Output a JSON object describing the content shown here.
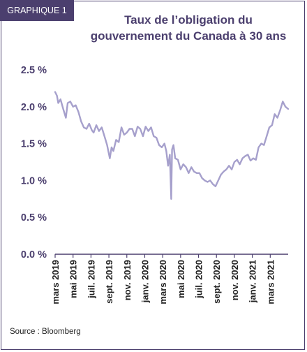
{
  "badge": "GRAPHIQUE 1",
  "title_line1": "Taux de l’obligation du",
  "title_line2": "gouvernement du Canada à 30 ans",
  "source": "Source : Bloomberg",
  "chart_data": {
    "type": "line",
    "title": "Taux de l’obligation du gouvernement du Canada à 30 ans",
    "ylim": [
      0,
      2.5
    ],
    "yticks": [
      "0.0 %",
      "0.5 %",
      "1.0 %",
      "1.5 %",
      "2.0 %",
      "2.5 %"
    ],
    "ytick_values": [
      0,
      0.5,
      1.0,
      1.5,
      2.0,
      2.5
    ],
    "xticks": [
      "mars 2019",
      "mai 2019",
      "juil. 2019",
      "sept. 2019",
      "nov. 2019",
      "janv. 2020",
      "mars 2020",
      "mai 2020",
      "juil. 2020",
      "sept. 2020",
      "nov. 2020",
      "janv. 2021",
      "mars 2021"
    ],
    "xlim": [
      0,
      26
    ],
    "grid": false,
    "line_color": "#a6a0cc",
    "series": [
      {
        "x": [
          0,
          0.2,
          0.35,
          0.6,
          0.9,
          1.2,
          1.4,
          1.7,
          2.0,
          2.3,
          2.6,
          2.9,
          3.2,
          3.5,
          3.8,
          4.1,
          4.3,
          4.6,
          4.9,
          5.2,
          5.5,
          5.8,
          6.1,
          6.3,
          6.5,
          6.8,
          7.1,
          7.4,
          7.7,
          8.0,
          8.3,
          8.6,
          8.9,
          9.2,
          9.5,
          9.8,
          10.1,
          10.4,
          10.7,
          11.0,
          11.3,
          11.6,
          11.9,
          12.2,
          12.4,
          12.6,
          12.8,
          12.95,
          13.05,
          13.2,
          13.4,
          13.7,
          14.0,
          14.3,
          14.6,
          14.9,
          15.2,
          15.5,
          15.8,
          16.1,
          16.4,
          16.7,
          17.0,
          17.3,
          17.6,
          17.9,
          18.2,
          18.5,
          18.8,
          19.1,
          19.4,
          19.7,
          20.0,
          20.3,
          20.6,
          20.9,
          21.2,
          21.5,
          21.8,
          22.1,
          22.4,
          22.7,
          23.0,
          23.3,
          23.6,
          23.9,
          24.2,
          24.5,
          24.8,
          25.1,
          25.4,
          25.7,
          26.0
        ],
        "values": [
          2.2,
          2.15,
          2.05,
          2.1,
          1.97,
          1.85,
          2.05,
          2.07,
          2.0,
          2.02,
          1.93,
          1.8,
          1.72,
          1.7,
          1.77,
          1.68,
          1.65,
          1.75,
          1.67,
          1.72,
          1.6,
          1.48,
          1.3,
          1.45,
          1.4,
          1.55,
          1.52,
          1.72,
          1.62,
          1.65,
          1.7,
          1.7,
          1.6,
          1.73,
          1.7,
          1.6,
          1.73,
          1.67,
          1.72,
          1.6,
          1.58,
          1.48,
          1.45,
          1.5,
          1.4,
          1.2,
          1.35,
          0.75,
          1.42,
          1.48,
          1.3,
          1.28,
          1.15,
          1.22,
          1.18,
          1.1,
          1.18,
          1.12,
          1.1,
          1.1,
          1.03,
          1.0,
          0.98,
          1.0,
          0.95,
          0.92,
          1.0,
          1.08,
          1.12,
          1.15,
          1.2,
          1.15,
          1.25,
          1.28,
          1.22,
          1.3,
          1.33,
          1.35,
          1.27,
          1.3,
          1.28,
          1.45,
          1.5,
          1.48,
          1.6,
          1.72,
          1.75,
          1.9,
          1.85,
          1.95,
          2.07,
          2.0,
          1.97
        ]
      }
    ]
  }
}
